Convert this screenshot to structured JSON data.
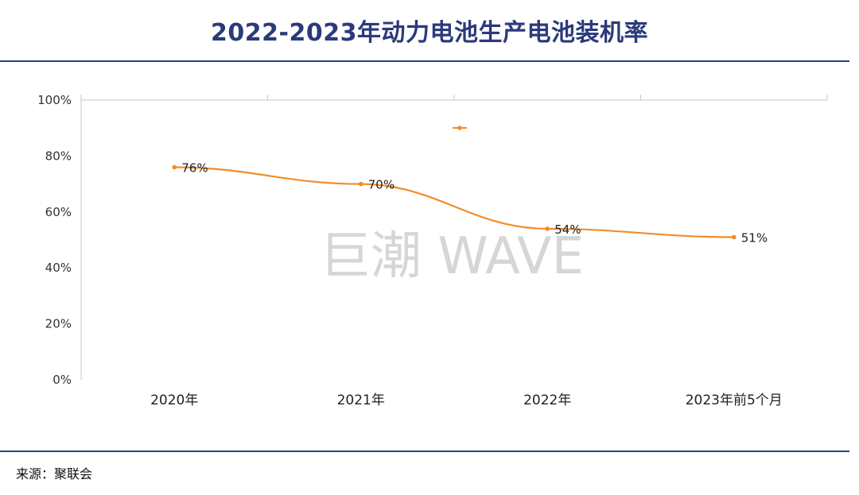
{
  "chart_data": {
    "type": "line",
    "title": "2022-2023年动力电池生产电池装机率",
    "categories": [
      "2020年",
      "2021年",
      "2022年",
      "2023年前5个月"
    ],
    "series": [
      {
        "name": "",
        "values": [
          76,
          70,
          54,
          51
        ],
        "labels": [
          "76%",
          "70%",
          "54%",
          "51%"
        ],
        "color": "#f28c28"
      }
    ],
    "ylim": [
      0,
      100
    ],
    "yticks": [
      0,
      20,
      40,
      60,
      80,
      100
    ],
    "ytick_labels": [
      "0%",
      "20%",
      "40%",
      "60%",
      "80%",
      "100%"
    ],
    "xlabel": "",
    "ylabel": "",
    "grid": false,
    "legend": "top-center"
  },
  "watermark": "巨潮 WAVE",
  "source_text": "来源：聚联会",
  "colors": {
    "title": "#2b3a7a",
    "rule": "#2f3f86",
    "series": "#f28c28",
    "axis": "#c9c9c9",
    "watermark": "#d4d4d4"
  }
}
